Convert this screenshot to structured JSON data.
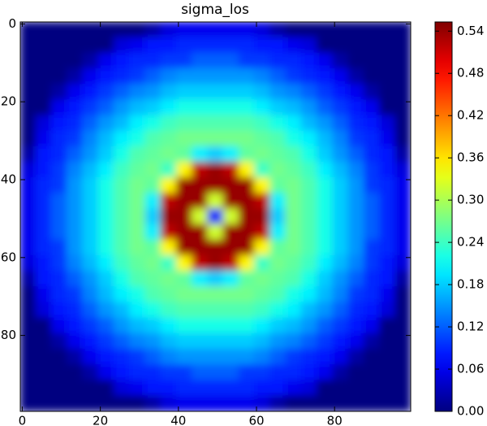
{
  "chart_data": {
    "type": "heatmap",
    "title": "sigma_los",
    "colormap": "jet",
    "xlim": [
      -0.5,
      99.5
    ],
    "ylim": [
      99.5,
      -0.5
    ],
    "xticks": [
      0,
      20,
      40,
      60,
      80
    ],
    "yticks": [
      0,
      20,
      40,
      60,
      80
    ],
    "colorbar": {
      "lim": [
        0,
        0.553
      ],
      "ticks": [
        {
          "value": 0,
          "label": "0.00"
        },
        {
          "value": 0.06,
          "label": "0.06"
        },
        {
          "value": 0.12,
          "label": "0.12"
        },
        {
          "value": 0.18,
          "label": "0.18"
        },
        {
          "value": 0.24,
          "label": "0.24"
        },
        {
          "value": 0.3,
          "label": "0.30"
        },
        {
          "value": 0.36,
          "label": "0.36"
        },
        {
          "value": 0.42,
          "label": "0.42"
        },
        {
          "value": 0.48,
          "label": "0.48"
        },
        {
          "value": 0.54,
          "label": "0.54"
        }
      ]
    },
    "z": [
      [
        0,
        0,
        0,
        0,
        0,
        0,
        0,
        0,
        0.02,
        0.05,
        0.06,
        0.06,
        0.06,
        0.06,
        0.06,
        0.05,
        0.02,
        0,
        0,
        0,
        0,
        0,
        0,
        0,
        0
      ],
      [
        0,
        0,
        0,
        0,
        0,
        0,
        0.05,
        0.06,
        0.08,
        0.08,
        0.09,
        0.09,
        0.09,
        0.09,
        0.09,
        0.08,
        0.08,
        0.06,
        0.05,
        0,
        0,
        0,
        0,
        0,
        0
      ],
      [
        0,
        0,
        0,
        0,
        0.02,
        0.06,
        0.08,
        0.09,
        0.09,
        0.1,
        0.1,
        0.12,
        0.12,
        0.12,
        0.1,
        0.1,
        0.09,
        0.09,
        0.08,
        0.06,
        0.02,
        0,
        0,
        0,
        0
      ],
      [
        0,
        0,
        0,
        0.02,
        0.06,
        0.08,
        0.09,
        0.1,
        0.12,
        0.14,
        0.15,
        0.15,
        0.15,
        0.15,
        0.15,
        0.14,
        0.12,
        0.1,
        0.09,
        0.08,
        0.06,
        0.02,
        0,
        0,
        0
      ],
      [
        0,
        0,
        0.02,
        0.06,
        0.08,
        0.1,
        0.12,
        0.14,
        0.15,
        0.17,
        0.18,
        0.18,
        0.18,
        0.18,
        0.18,
        0.17,
        0.15,
        0.14,
        0.12,
        0.1,
        0.08,
        0.06,
        0.02,
        0,
        0
      ],
      [
        0,
        0,
        0.06,
        0.08,
        0.1,
        0.12,
        0.15,
        0.17,
        0.18,
        0.2,
        0.22,
        0.22,
        0.22,
        0.22,
        0.22,
        0.2,
        0.18,
        0.17,
        0.15,
        0.12,
        0.1,
        0.08,
        0.06,
        0,
        0
      ],
      [
        0,
        0.05,
        0.08,
        0.09,
        0.12,
        0.15,
        0.17,
        0.2,
        0.22,
        0.24,
        0.25,
        0.25,
        0.25,
        0.25,
        0.25,
        0.24,
        0.22,
        0.2,
        0.17,
        0.15,
        0.12,
        0.09,
        0.08,
        0.05,
        0
      ],
      [
        0,
        0.06,
        0.09,
        0.1,
        0.14,
        0.17,
        0.2,
        0.22,
        0.25,
        0.26,
        0.27,
        0.27,
        0.27,
        0.27,
        0.27,
        0.26,
        0.25,
        0.22,
        0.2,
        0.17,
        0.14,
        0.1,
        0.09,
        0.06,
        0
      ],
      [
        0.02,
        0.08,
        0.09,
        0.12,
        0.15,
        0.18,
        0.22,
        0.25,
        0.26,
        0.27,
        0.26,
        0.2,
        0.18,
        0.2,
        0.26,
        0.27,
        0.26,
        0.25,
        0.22,
        0.18,
        0.15,
        0.12,
        0.09,
        0.08,
        0.02
      ],
      [
        0.05,
        0.08,
        0.1,
        0.14,
        0.17,
        0.2,
        0.24,
        0.26,
        0.27,
        0.24,
        0.35,
        0.52,
        0.54,
        0.52,
        0.35,
        0.24,
        0.27,
        0.26,
        0.24,
        0.2,
        0.17,
        0.14,
        0.1,
        0.08,
        0.05
      ],
      [
        0.06,
        0.09,
        0.1,
        0.15,
        0.18,
        0.22,
        0.25,
        0.27,
        0.26,
        0.35,
        0.54,
        0.54,
        0.54,
        0.54,
        0.54,
        0.35,
        0.26,
        0.27,
        0.25,
        0.22,
        0.18,
        0.15,
        0.1,
        0.09,
        0.06
      ],
      [
        0.06,
        0.09,
        0.12,
        0.15,
        0.18,
        0.22,
        0.25,
        0.27,
        0.2,
        0.52,
        0.54,
        0.54,
        0.32,
        0.54,
        0.54,
        0.52,
        0.2,
        0.27,
        0.25,
        0.22,
        0.18,
        0.15,
        0.12,
        0.09,
        0.06
      ],
      [
        0.06,
        0.09,
        0.12,
        0.15,
        0.18,
        0.22,
        0.25,
        0.27,
        0.18,
        0.54,
        0.54,
        0.32,
        0.08,
        0.32,
        0.54,
        0.54,
        0.18,
        0.27,
        0.25,
        0.22,
        0.18,
        0.15,
        0.12,
        0.09,
        0.06
      ],
      [
        0.06,
        0.09,
        0.12,
        0.15,
        0.18,
        0.22,
        0.25,
        0.27,
        0.2,
        0.52,
        0.54,
        0.54,
        0.32,
        0.54,
        0.54,
        0.52,
        0.2,
        0.27,
        0.25,
        0.22,
        0.18,
        0.15,
        0.12,
        0.09,
        0.06
      ],
      [
        0.06,
        0.09,
        0.1,
        0.15,
        0.18,
        0.22,
        0.25,
        0.27,
        0.26,
        0.35,
        0.54,
        0.54,
        0.54,
        0.54,
        0.54,
        0.35,
        0.26,
        0.27,
        0.25,
        0.22,
        0.18,
        0.15,
        0.1,
        0.09,
        0.06
      ],
      [
        0.05,
        0.08,
        0.1,
        0.14,
        0.17,
        0.2,
        0.24,
        0.26,
        0.27,
        0.24,
        0.35,
        0.52,
        0.54,
        0.52,
        0.35,
        0.24,
        0.27,
        0.26,
        0.24,
        0.2,
        0.17,
        0.14,
        0.1,
        0.08,
        0.05
      ],
      [
        0.02,
        0.08,
        0.09,
        0.12,
        0.15,
        0.18,
        0.22,
        0.25,
        0.26,
        0.27,
        0.26,
        0.2,
        0.18,
        0.2,
        0.26,
        0.27,
        0.26,
        0.25,
        0.22,
        0.18,
        0.15,
        0.12,
        0.09,
        0.08,
        0.02
      ],
      [
        0,
        0.06,
        0.09,
        0.1,
        0.14,
        0.17,
        0.2,
        0.22,
        0.25,
        0.26,
        0.27,
        0.27,
        0.27,
        0.27,
        0.27,
        0.26,
        0.25,
        0.22,
        0.2,
        0.17,
        0.14,
        0.1,
        0.09,
        0.06,
        0
      ],
      [
        0,
        0.05,
        0.08,
        0.09,
        0.12,
        0.15,
        0.17,
        0.2,
        0.22,
        0.24,
        0.25,
        0.25,
        0.25,
        0.25,
        0.25,
        0.24,
        0.22,
        0.2,
        0.17,
        0.15,
        0.12,
        0.09,
        0.08,
        0.05,
        0
      ],
      [
        0,
        0,
        0.06,
        0.08,
        0.1,
        0.12,
        0.15,
        0.17,
        0.18,
        0.2,
        0.22,
        0.22,
        0.22,
        0.22,
        0.22,
        0.2,
        0.18,
        0.17,
        0.15,
        0.12,
        0.1,
        0.08,
        0.06,
        0,
        0
      ],
      [
        0,
        0,
        0.02,
        0.06,
        0.08,
        0.1,
        0.12,
        0.14,
        0.15,
        0.17,
        0.18,
        0.18,
        0.18,
        0.18,
        0.18,
        0.17,
        0.15,
        0.14,
        0.12,
        0.1,
        0.08,
        0.06,
        0.02,
        0,
        0
      ],
      [
        0,
        0,
        0,
        0.02,
        0.06,
        0.08,
        0.09,
        0.1,
        0.12,
        0.14,
        0.15,
        0.15,
        0.15,
        0.15,
        0.15,
        0.14,
        0.12,
        0.1,
        0.09,
        0.08,
        0.06,
        0.02,
        0,
        0,
        0
      ],
      [
        0,
        0,
        0,
        0,
        0.02,
        0.06,
        0.08,
        0.09,
        0.09,
        0.1,
        0.1,
        0.12,
        0.12,
        0.12,
        0.1,
        0.1,
        0.09,
        0.09,
        0.08,
        0.06,
        0.02,
        0,
        0,
        0,
        0
      ],
      [
        0,
        0,
        0,
        0,
        0,
        0,
        0.05,
        0.06,
        0.08,
        0.08,
        0.09,
        0.09,
        0.09,
        0.09,
        0.09,
        0.08,
        0.08,
        0.06,
        0.05,
        0,
        0,
        0,
        0,
        0,
        0
      ],
      [
        0,
        0,
        0,
        0,
        0,
        0,
        0,
        0,
        0.02,
        0.05,
        0.06,
        0.06,
        0.06,
        0.06,
        0.06,
        0.05,
        0.02,
        0,
        0,
        0,
        0,
        0,
        0,
        0,
        0
      ]
    ]
  }
}
